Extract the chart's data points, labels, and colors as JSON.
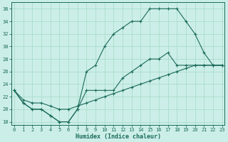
{
  "xlabel": "Humidex (Indice chaleur)",
  "bg_color": "#cceee8",
  "line_color": "#1a6b5a",
  "grid_color": "#aaddcc",
  "ylim": [
    17.5,
    37
  ],
  "xlim": [
    -0.3,
    23.3
  ],
  "yticks": [
    18,
    20,
    22,
    24,
    26,
    28,
    30,
    32,
    34,
    36
  ],
  "xticks": [
    0,
    1,
    2,
    3,
    4,
    5,
    6,
    7,
    8,
    9,
    10,
    11,
    12,
    13,
    14,
    15,
    16,
    17,
    18,
    19,
    20,
    21,
    22,
    23
  ],
  "line1_x": [
    0,
    1,
    2,
    3,
    4,
    5,
    6,
    7,
    8,
    9,
    10,
    11,
    12,
    13,
    14,
    15,
    16,
    17,
    18,
    19,
    20,
    21,
    22,
    23
  ],
  "line1_y": [
    23,
    21,
    20,
    20,
    19,
    18,
    18,
    20,
    23,
    23,
    23,
    23,
    25,
    26,
    27,
    28,
    28,
    29,
    27,
    27,
    27,
    27,
    27,
    27
  ],
  "line2_x": [
    0,
    1,
    2,
    3,
    4,
    5,
    6,
    7,
    8,
    9,
    10,
    11,
    12,
    13,
    14,
    15,
    16,
    17,
    18,
    19,
    20,
    21,
    22,
    23
  ],
  "line2_y": [
    23,
    21,
    20,
    20,
    19,
    18,
    18,
    20,
    26,
    27,
    30,
    32,
    33,
    34,
    34,
    36,
    36,
    36,
    36,
    34,
    32,
    29,
    27,
    27
  ],
  "line3_x": [
    0,
    1,
    2,
    3,
    4,
    5,
    6,
    7,
    8,
    9,
    10,
    11,
    12,
    13,
    14,
    15,
    16,
    17,
    18,
    19,
    20,
    21,
    22,
    23
  ],
  "line3_y": [
    23,
    21.5,
    21,
    21,
    20.5,
    20,
    20,
    20.5,
    21,
    21.5,
    22,
    22.5,
    23,
    23.5,
    24,
    24.5,
    25,
    25.5,
    26,
    26.5,
    27,
    27,
    27,
    27
  ]
}
